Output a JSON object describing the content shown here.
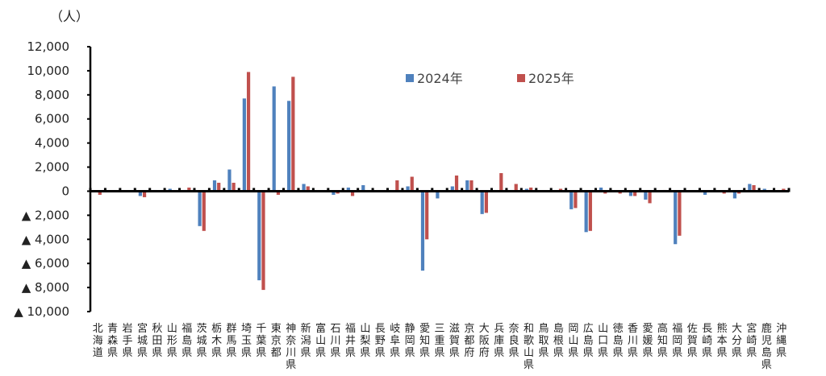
{
  "chart_data": {
    "type": "bar",
    "title": "",
    "ylabel": "（人）",
    "xlabel": "",
    "ylim": [
      -10000,
      12000
    ],
    "yticks": [
      12000,
      10000,
      8000,
      6000,
      4000,
      2000,
      0,
      -2000,
      -4000,
      -6000,
      -8000,
      -10000
    ],
    "ytick_labels": [
      "12,000",
      "10,000",
      "8,000",
      "6,000",
      "4,000",
      "2,000",
      "0",
      "▲ 2,000",
      "▲ 4,000",
      "▲ 6,000",
      "▲ 8,000",
      "▲ 10,000"
    ],
    "legend_position": "top-center",
    "categories": [
      "北海道",
      "青森県",
      "岩手県",
      "宮城県",
      "秋田県",
      "山形県",
      "福島県",
      "茨城県",
      "栃木県",
      "群馬県",
      "埼玉県",
      "千葉県",
      "東京都",
      "神奈川県",
      "新潟県",
      "富山県",
      "石川県",
      "福井県",
      "山梨県",
      "長野県",
      "岐阜県",
      "静岡県",
      "愛知県",
      "三重県",
      "滋賀県",
      "京都府",
      "大阪府",
      "兵庫県",
      "奈良県",
      "和歌山県",
      "鳥取県",
      "島根県",
      "岡山県",
      "広島県",
      "山口県",
      "徳島県",
      "香川県",
      "愛媛県",
      "高知県",
      "福岡県",
      "佐賀県",
      "長崎県",
      "熊本県",
      "大分県",
      "宮崎県",
      "鹿児島県",
      "沖縄県"
    ],
    "series": [
      {
        "name": "2024年",
        "color": "#4f81bd",
        "values": [
          0,
          0,
          0,
          -400,
          100,
          200,
          100,
          -2900,
          900,
          1800,
          7700,
          -7400,
          8700,
          7500,
          600,
          0,
          -300,
          300,
          500,
          -100,
          0,
          400,
          -6600,
          -600,
          400,
          900,
          -1900,
          0,
          100,
          200,
          0,
          0,
          -1500,
          -3400,
          300,
          0,
          -400,
          -700,
          0,
          -4400,
          0,
          -300,
          -100,
          -600,
          600,
          200,
          0
        ]
      },
      {
        "name": "2025年",
        "color": "#c0504d",
        "values": [
          -300,
          0,
          0,
          -500,
          50,
          0,
          300,
          -3300,
          700,
          700,
          9900,
          -8200,
          -300,
          9500,
          400,
          0,
          -200,
          -400,
          0,
          0,
          900,
          1200,
          -4000,
          0,
          1300,
          900,
          -1800,
          1500,
          600,
          300,
          0,
          200,
          -1400,
          -3300,
          -200,
          -200,
          -400,
          -1000,
          100,
          -3700,
          0,
          -100,
          -200,
          -200,
          500,
          0,
          200
        ]
      }
    ]
  }
}
